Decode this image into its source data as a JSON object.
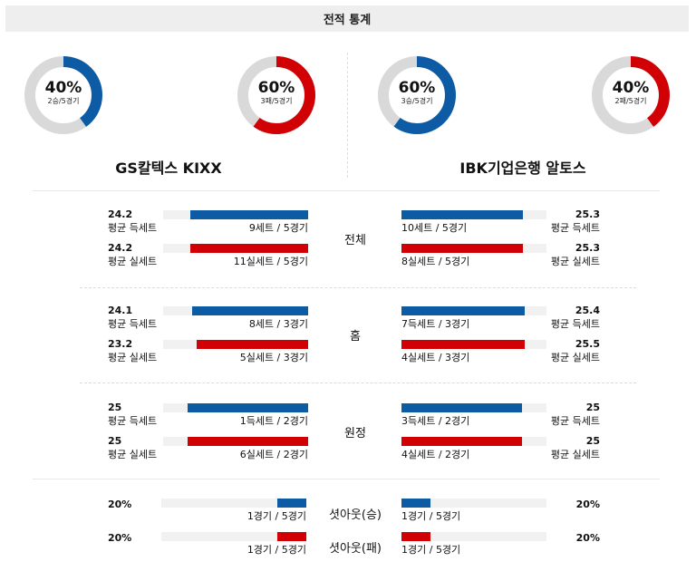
{
  "header": {
    "title": "전적 통계"
  },
  "colors": {
    "blue": "#0d5aa5",
    "red": "#d10005",
    "ring_bg": "#d9d9d9"
  },
  "teams": {
    "home": {
      "name": "GS칼텍스 KIXX",
      "donut_win": {
        "pct_text": "40%",
        "sub": "2승/5경기",
        "fraction": 0.4,
        "color": "blue"
      },
      "donut_loss": {
        "pct_text": "60%",
        "sub": "3패/5경기",
        "fraction": 0.6,
        "color": "red"
      }
    },
    "away": {
      "name": "IBK기업은행 알토스",
      "donut_win": {
        "pct_text": "60%",
        "sub": "3승/5경기",
        "fraction": 0.6,
        "color": "blue"
      },
      "donut_loss": {
        "pct_text": "40%",
        "sub": "2패/5경기",
        "fraction": 0.4,
        "color": "red"
      }
    }
  },
  "sections": [
    {
      "label": "전체",
      "rows": [
        {
          "left": {
            "value": "24.2",
            "label": "평균 득세트",
            "count": "9세트 / 5경기",
            "fraction": 0.81,
            "color": "blue"
          },
          "right": {
            "value": "25.3",
            "label": "평균 득세트",
            "count": "10세트 / 5경기",
            "fraction": 0.84,
            "color": "blue"
          }
        },
        {
          "left": {
            "value": "24.2",
            "label": "평균 실세트",
            "count": "11실세트 / 5경기",
            "fraction": 0.81,
            "color": "red"
          },
          "right": {
            "value": "25.3",
            "label": "평균 실세트",
            "count": "8실세트 / 5경기",
            "fraction": 0.84,
            "color": "red"
          }
        }
      ]
    },
    {
      "label": "홈",
      "rows": [
        {
          "left": {
            "value": "24.1",
            "label": "평균 득세트",
            "count": "8세트 / 3경기",
            "fraction": 0.8,
            "color": "blue"
          },
          "right": {
            "value": "25.4",
            "label": "평균 득세트",
            "count": "7득세트 / 3경기",
            "fraction": 0.85,
            "color": "blue"
          }
        },
        {
          "left": {
            "value": "23.2",
            "label": "평균 실세트",
            "count": "5실세트 / 3경기",
            "fraction": 0.77,
            "color": "red"
          },
          "right": {
            "value": "25.5",
            "label": "평균 실세트",
            "count": "4실세트 / 3경기",
            "fraction": 0.85,
            "color": "red"
          }
        }
      ]
    },
    {
      "label": "원정",
      "rows": [
        {
          "left": {
            "value": "25",
            "label": "평균 득세트",
            "count": "1득세트 / 2경기",
            "fraction": 0.83,
            "color": "blue"
          },
          "right": {
            "value": "25",
            "label": "평균 득세트",
            "count": "3득세트 / 2경기",
            "fraction": 0.83,
            "color": "blue"
          }
        },
        {
          "left": {
            "value": "25",
            "label": "평균 실세트",
            "count": "6실세트 / 2경기",
            "fraction": 0.83,
            "color": "red"
          },
          "right": {
            "value": "25",
            "label": "평균 실세트",
            "count": "4실세트 / 2경기",
            "fraction": 0.83,
            "color": "red"
          }
        }
      ]
    }
  ],
  "shutouts": [
    {
      "label": "셧아웃(승)",
      "left": {
        "pct": "20%",
        "count": "1경기 / 5경기",
        "fraction": 0.2,
        "color": "blue"
      },
      "right": {
        "pct": "20%",
        "count": "1경기 / 5경기",
        "fraction": 0.2,
        "color": "blue"
      }
    },
    {
      "label": "셧아웃(패)",
      "left": {
        "pct": "20%",
        "count": "1경기 / 5경기",
        "fraction": 0.2,
        "color": "red"
      },
      "right": {
        "pct": "20%",
        "count": "1경기 / 5경기",
        "fraction": 0.2,
        "color": "red"
      }
    }
  ]
}
